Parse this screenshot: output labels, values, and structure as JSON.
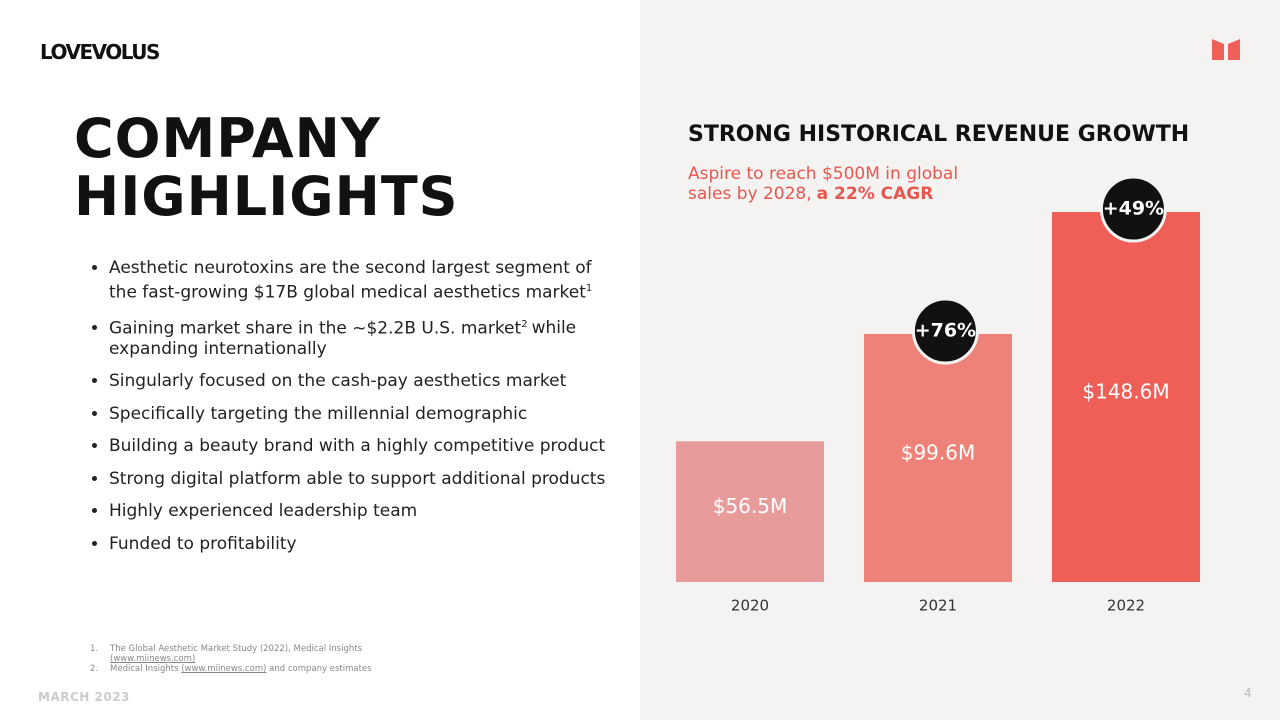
{
  "logo": "LOVEVOLUS",
  "title": [
    "COMPANY",
    "HIGHLIGHTS"
  ],
  "bullets": [
    {
      "text": "Aesthetic neurotoxins are the second largest segment of the fast-growing $17B global medical aesthetics market",
      "note": "1"
    },
    {
      "text": "Gaining market share in the ~$2.2B U.S. market",
      "note": "2",
      "text_after": "while expanding internationally"
    },
    {
      "text": "Singularly focused on the cash-pay aesthetics market"
    },
    {
      "text": "Specifically targeting the millennial demographic"
    },
    {
      "text": "Building a beauty brand with a highly competitive product"
    },
    {
      "text": "Strong digital platform able to support additional products"
    },
    {
      "text": "Highly experienced leadership team"
    },
    {
      "text": "Funded to profitability"
    }
  ],
  "footnotes": [
    {
      "number": "1.",
      "text": "The Global Aesthetic Market Study (2022), Medical Insights",
      "link": "(www.miinews.com)"
    },
    {
      "number": "2.",
      "text": "Medical Insights",
      "link": "(www.miinews.com)",
      "text_after": "and company estimates"
    }
  ],
  "footer": "MARCH 2023",
  "page_number": "4",
  "chart_data": {
    "type": "bar",
    "title": "STRONG HISTORICAL REVENUE GROWTH",
    "subtitle": "Aspire to reach $500M in global sales by 2028,",
    "subtitle_emphasis": "a 22% CAGR",
    "categories": [
      "2020",
      "2021",
      "2022"
    ],
    "values": [
      56.5,
      99.6,
      148.6
    ],
    "value_labels": [
      "$56.5M",
      "$99.6M",
      "$148.6M"
    ],
    "colors": [
      "#e89b9b",
      "#ee8279",
      "#ef5f58"
    ],
    "annotations": [
      null,
      "+76%",
      "+49%"
    ]
  }
}
